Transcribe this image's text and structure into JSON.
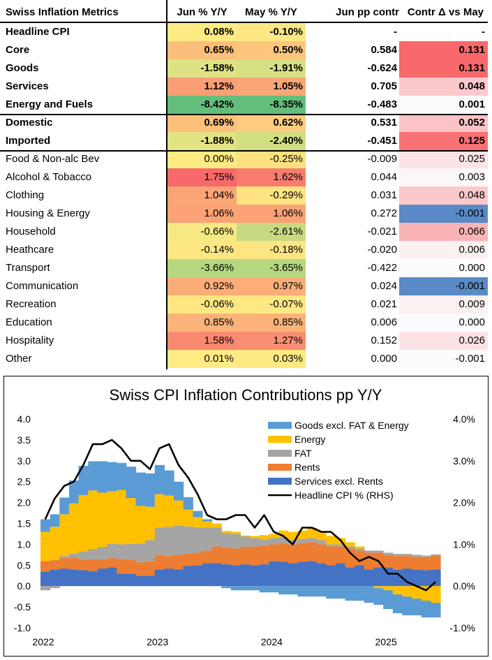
{
  "table": {
    "headers": {
      "label": "Swiss Inflation Metrics",
      "jun": "Jun % Y/Y",
      "may": "May % Y/Y",
      "pp": "Jun pp contr",
      "delta": "Contr Δ vs May"
    },
    "rows": [
      {
        "label": "Headline CPI",
        "jun": "0.08%",
        "may": "-0.10%",
        "pp": "-",
        "delta": "-"
      },
      {
        "label": "Core",
        "jun": "0.65%",
        "may": "0.50%",
        "pp": "0.584",
        "delta": "0.131"
      },
      {
        "label": "Goods",
        "jun": "-1.58%",
        "may": "-1.91%",
        "pp": "-0.624",
        "delta": "0.131"
      },
      {
        "label": "Services",
        "jun": "1.12%",
        "may": "1.05%",
        "pp": "0.705",
        "delta": "0.048"
      },
      {
        "label": "Energy and Fuels",
        "jun": "-8.42%",
        "may": "-8.35%",
        "pp": "-0.483",
        "delta": "0.001"
      },
      {
        "label": "Domestic",
        "jun": "0.69%",
        "may": "0.62%",
        "pp": "0.531",
        "delta": "0.052"
      },
      {
        "label": "Imported",
        "jun": "-1.88%",
        "may": "-2.40%",
        "pp": "-0.451",
        "delta": "0.125"
      },
      {
        "label": "Food & Non-alc Bev",
        "jun": "0.00%",
        "may": "-0.25%",
        "pp": "-0.009",
        "delta": "0.025"
      },
      {
        "label": "Alcohol & Tobacco",
        "jun": "1.75%",
        "may": "1.62%",
        "pp": "0.044",
        "delta": "0.003"
      },
      {
        "label": "Clothing",
        "jun": "1.04%",
        "may": "-0.29%",
        "pp": "0.031",
        "delta": "0.048"
      },
      {
        "label": "Housing & Energy",
        "jun": "1.06%",
        "may": "1.06%",
        "pp": "0.272",
        "delta": "-0.001"
      },
      {
        "label": "Household",
        "jun": "-0.66%",
        "may": "-2.61%",
        "pp": "-0.021",
        "delta": "0.066"
      },
      {
        "label": "Heathcare",
        "jun": "-0.14%",
        "may": "-0.18%",
        "pp": "-0.020",
        "delta": "0.006"
      },
      {
        "label": "Transport",
        "jun": "-3.66%",
        "may": "-3.65%",
        "pp": "-0.422",
        "delta": "0.000"
      },
      {
        "label": "Communication",
        "jun": "0.92%",
        "may": "0.97%",
        "pp": "0.024",
        "delta": "-0.001"
      },
      {
        "label": "Recreation",
        "jun": "-0.06%",
        "may": "-0.07%",
        "pp": "0.021",
        "delta": "0.009"
      },
      {
        "label": "Education",
        "jun": "0.85%",
        "may": "0.85%",
        "pp": "0.006",
        "delta": "0.000"
      },
      {
        "label": "Hospitality",
        "jun": "1.58%",
        "may": "1.27%",
        "pp": "0.152",
        "delta": "0.026"
      },
      {
        "label": "Other",
        "jun": "0.01%",
        "may": "0.03%",
        "pp": "0.000",
        "delta": "-0.001"
      }
    ]
  },
  "colors": {
    "jun": [
      "#ffeb84",
      "#fcbf7b",
      "#dfe283",
      "#fa9e75",
      "#63be7b",
      "#fcc07b",
      "#e2e383",
      "#ffeb84",
      "#f8696b",
      "#fba476",
      "#fba376",
      "#f6e983",
      "#fde783",
      "#b6d880",
      "#fbad78",
      "#fee783",
      "#fbb379",
      "#f98a71",
      "#ffeb84"
    ],
    "may": [
      "#fde783",
      "#fcc67d",
      "#d7e082",
      "#faa676",
      "#63be7b",
      "#fdcc7e",
      "#d1de82",
      "#fde181",
      "#f87d6f",
      "#fde481",
      "#fba376",
      "#c8da81",
      "#fde581",
      "#b6d880",
      "#fbae78",
      "#fee883",
      "#fbb379",
      "#f98f72",
      "#ffe983"
    ],
    "pp": [
      "#ffffff",
      "#ffffff",
      "#ffffff",
      "#ffffff",
      "#ffffff",
      "#ffffff",
      "#ffffff",
      "#ffffff",
      "#ffffff",
      "#ffffff",
      "#ffffff",
      "#ffffff",
      "#ffffff",
      "#ffffff",
      "#ffffff",
      "#ffffff",
      "#ffffff",
      "#ffffff",
      "#ffffff"
    ],
    "delta": [
      "#ffffff",
      "#f8696b",
      "#f8696b",
      "#fbc9cb",
      "#fcfbfc",
      "#fbc3c5",
      "#f87174",
      "#fce4e6",
      "#fcf7f8",
      "#fbc9cb",
      "#5a8ac6",
      "#fbb4b6",
      "#fcf1f2",
      "#fcfcff",
      "#5a8ac6",
      "#fcf0f1",
      "#fcfcff",
      "#fce2e4",
      "#fcfcff"
    ]
  },
  "chart_data": {
    "type": "area",
    "title": "Swiss CPI Inflation Contributions pp Y/Y",
    "xlabel": "",
    "ylabel": "",
    "ylim": [
      -1.0,
      4.0
    ],
    "y2lim": [
      -1.0,
      4.0
    ],
    "yticks": [
      "4.0",
      "3.5",
      "3.0",
      "2.5",
      "2.0",
      "1.5",
      "1.0",
      "0.5",
      "0.0",
      "-0.5",
      "-1.0"
    ],
    "y2ticks": [
      "4.0%",
      "3.0%",
      "2.0%",
      "1.0%",
      "0.0%",
      "-1.0%"
    ],
    "xticks": [
      "2022",
      "2023",
      "2024",
      "2025"
    ],
    "x_start": "2022-01",
    "months": 42,
    "legend": [
      "Goods excl. FAT & Energy",
      "Energy",
      "FAT",
      "Rents",
      "Services excl. Rents",
      "Headline CPI % (RHS)"
    ],
    "series_colors": {
      "Goods excl. FAT & Energy": "#5b9bd5",
      "Energy": "#ffc000",
      "FAT": "#a5a5a5",
      "Rents": "#ed7d31",
      "Services excl. Rents": "#4472c4",
      "Headline CPI % (RHS)": "#000000"
    },
    "series": [
      {
        "name": "Services excl. Rents",
        "values": [
          0.35,
          0.4,
          0.42,
          0.4,
          0.38,
          0.36,
          0.42,
          0.45,
          0.3,
          0.3,
          0.25,
          0.25,
          0.4,
          0.42,
          0.4,
          0.48,
          0.5,
          0.55,
          0.55,
          0.52,
          0.5,
          0.52,
          0.5,
          0.52,
          0.6,
          0.58,
          0.55,
          0.58,
          0.6,
          0.55,
          0.5,
          0.55,
          0.45,
          0.5,
          0.4,
          0.45,
          0.45,
          0.4,
          0.42,
          0.4,
          0.38,
          0.4
        ]
      },
      {
        "name": "Rents",
        "values": [
          0.25,
          0.22,
          0.25,
          0.28,
          0.25,
          0.28,
          0.22,
          0.22,
          0.35,
          0.33,
          0.32,
          0.35,
          0.35,
          0.3,
          0.35,
          0.3,
          0.3,
          0.3,
          0.4,
          0.4,
          0.4,
          0.42,
          0.45,
          0.45,
          0.4,
          0.45,
          0.45,
          0.45,
          0.45,
          0.45,
          0.45,
          0.4,
          0.45,
          0.35,
          0.4,
          0.35,
          0.3,
          0.32,
          0.3,
          0.3,
          0.32,
          0.33
        ]
      },
      {
        "name": "FAT",
        "values": [
          -0.1,
          -0.05,
          0.05,
          0.1,
          0.2,
          0.25,
          0.3,
          0.35,
          0.35,
          0.38,
          0.45,
          0.5,
          0.65,
          0.7,
          0.7,
          0.65,
          0.6,
          0.55,
          0.45,
          0.35,
          0.35,
          0.25,
          0.2,
          0.15,
          0.15,
          0.15,
          0.1,
          0.1,
          0.1,
          0.1,
          0.05,
          0.05,
          0.05,
          0.05,
          0.05,
          0.05,
          0.05,
          0.05,
          0.05,
          0.05,
          0.03,
          0.03
        ]
      },
      {
        "name": "Energy",
        "values": [
          0.7,
          0.8,
          1.0,
          1.2,
          1.35,
          1.4,
          1.3,
          1.25,
          1.3,
          1.1,
          0.9,
          0.8,
          0.8,
          0.75,
          0.6,
          0.4,
          0.25,
          0.15,
          0.1,
          0.05,
          0.05,
          0.02,
          0.05,
          0.1,
          0.1,
          0.15,
          0.2,
          0.2,
          0.25,
          0.2,
          0.2,
          0.15,
          0.1,
          0.05,
          0.0,
          -0.05,
          -0.1,
          -0.2,
          -0.25,
          -0.3,
          -0.35,
          -0.4
        ]
      },
      {
        "name": "Goods excl. FAT & Energy",
        "values": [
          0.3,
          0.3,
          0.4,
          0.55,
          0.7,
          0.7,
          0.75,
          0.7,
          0.65,
          0.75,
          0.8,
          0.8,
          0.7,
          0.6,
          0.45,
          0.3,
          0.15,
          0.05,
          0.0,
          -0.05,
          -0.1,
          -0.1,
          -0.1,
          -0.15,
          -0.15,
          -0.2,
          -0.2,
          -0.25,
          -0.25,
          -0.25,
          -0.3,
          -0.3,
          -0.35,
          -0.35,
          -0.4,
          -0.4,
          -0.45,
          -0.45,
          -0.45,
          -0.4,
          -0.4,
          -0.35
        ]
      },
      {
        "name": "Headline CPI % (RHS)",
        "values": [
          1.6,
          2.1,
          2.4,
          2.5,
          2.9,
          3.4,
          3.4,
          3.5,
          3.3,
          3.0,
          3.0,
          2.8,
          3.3,
          3.4,
          2.9,
          2.6,
          2.2,
          1.7,
          1.6,
          1.6,
          1.7,
          1.7,
          1.4,
          1.7,
          1.3,
          1.2,
          1.0,
          1.4,
          1.4,
          1.3,
          1.3,
          1.1,
          0.8,
          0.6,
          0.7,
          0.6,
          0.3,
          0.3,
          0.1,
          0.0,
          -0.1,
          0.1
        ]
      }
    ]
  }
}
